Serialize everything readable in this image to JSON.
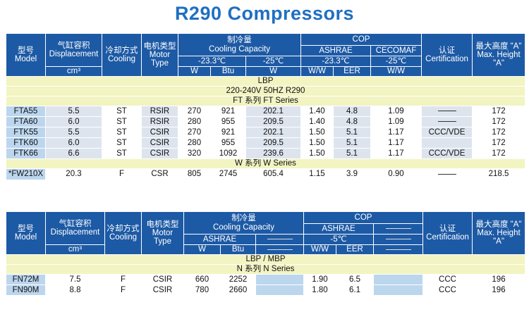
{
  "title": "R290 Compressors",
  "table1": {
    "headers": {
      "model": [
        "型号",
        "Model"
      ],
      "displacement": [
        "气缸容积",
        "Displacement"
      ],
      "cooling": [
        "冷却方式",
        "Cooling"
      ],
      "motor": [
        "电机类型",
        "Motor",
        "Type"
      ],
      "capacity": [
        "制冷量",
        "Cooling Capacity"
      ],
      "cop": "COP",
      "ashrae": "ASHRAE",
      "cecomaf": "CECOMAF",
      "temp_ashrae": "-23.3℃",
      "temp_cecomaf": "-25℃",
      "certification": [
        "认证",
        "Certification"
      ],
      "height": [
        "最大高度 \"A\"",
        "Max. Height",
        "\"A\""
      ],
      "units": {
        "displacement": "cm³",
        "w": "W",
        "btu": "Btu",
        "w2": "W",
        "ww": "W/W",
        "eer": "EER",
        "ww2": "W/W"
      }
    },
    "bands": [
      "LBP",
      "220-240V 50HZ R290",
      "FT 系列 FT Series"
    ],
    "rows": [
      {
        "model": "FTA55",
        "disp": "5.5",
        "cool": "ST",
        "motor": "RSIR",
        "w": "270",
        "btu": "921",
        "cec": "202.1",
        "ww": "1.40",
        "eer": "4.8",
        "ww2": "1.09",
        "cert": "",
        "height": "172"
      },
      {
        "model": "FTA60",
        "disp": "6.0",
        "cool": "ST",
        "motor": "RSIR",
        "w": "280",
        "btu": "955",
        "cec": "209.5",
        "ww": "1.40",
        "eer": "4.8",
        "ww2": "1.09",
        "cert": "",
        "height": "172"
      },
      {
        "model": "FTK55",
        "disp": "5.5",
        "cool": "ST",
        "motor": "CSIR",
        "w": "270",
        "btu": "921",
        "cec": "202.1",
        "ww": "1.50",
        "eer": "5.1",
        "ww2": "1.17",
        "cert": "CCC/VDE",
        "height": "172"
      },
      {
        "model": "FTK60",
        "disp": "6.0",
        "cool": "ST",
        "motor": "CSIR",
        "w": "280",
        "btu": "955",
        "cec": "209.5",
        "ww": "1.50",
        "eer": "5.1",
        "ww2": "1.17",
        "cert": "",
        "height": "172"
      },
      {
        "model": "FTK66",
        "disp": "6.6",
        "cool": "ST",
        "motor": "CSIR",
        "w": "320",
        "btu": "1092",
        "cec": "239.6",
        "ww": "1.50",
        "eer": "5.1",
        "ww2": "1.17",
        "cert": "CCC/VDE",
        "height": "172"
      }
    ],
    "band_w": "W 系列 W Series",
    "row_w": {
      "model": "*FW210X",
      "disp": "20.3",
      "cool": "F",
      "motor": "CSR",
      "w": "805",
      "btu": "2745",
      "cec": "605.4",
      "ww": "1.15",
      "eer": "3.9",
      "ww2": "0.90",
      "cert": "",
      "height": "218.5"
    }
  },
  "table2": {
    "headers": {
      "model": [
        "型号",
        "Model"
      ],
      "displacement": [
        "气缸容积",
        "Displacement"
      ],
      "cooling": [
        "冷却方式",
        "Cooling"
      ],
      "motor": [
        "电机类型",
        "Motor",
        "Type"
      ],
      "capacity": [
        "制冷量",
        "Cooling Capacity"
      ],
      "cop": "COP",
      "ashrae": "ASHRAE",
      "temp_ashrae": "-5℃",
      "certification": [
        "认证",
        "Certification"
      ],
      "height": [
        "最大高度 \"A\"",
        "Max. Height",
        "\"A\""
      ],
      "units": {
        "displacement": "cm³",
        "w": "W",
        "btu": "Btu",
        "ww": "W/W",
        "eer": "EER"
      }
    },
    "bands": [
      "LBP / MBP",
      "N 系列 N Series"
    ],
    "rows": [
      {
        "model": "FN72M",
        "disp": "7.5",
        "cool": "F",
        "motor": "CSIR",
        "w": "660",
        "btu": "2252",
        "ww": "1.90",
        "eer": "6.5",
        "cert": "CCC",
        "height": "196"
      },
      {
        "model": "FN90M",
        "disp": "8.8",
        "cool": "F",
        "motor": "CSIR",
        "w": "780",
        "btu": "2660",
        "ww": "1.80",
        "eer": "6.1",
        "cert": "CCC",
        "height": "196"
      }
    ]
  }
}
